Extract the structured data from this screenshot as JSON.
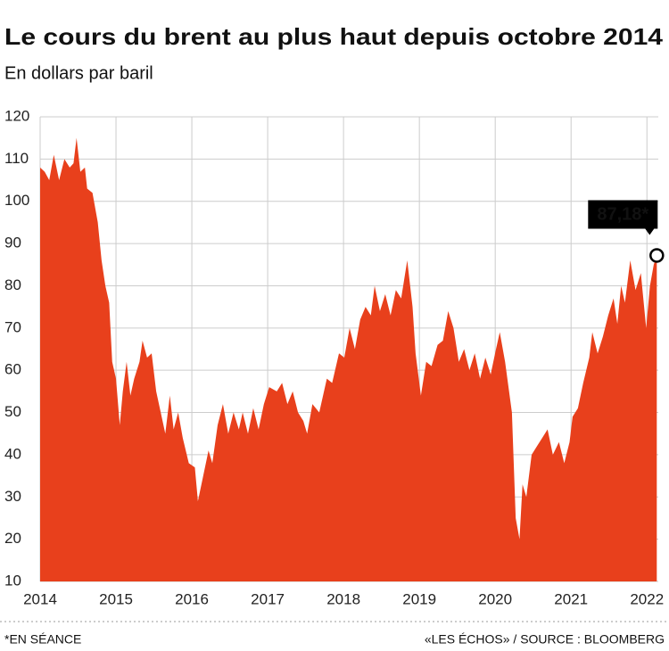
{
  "chart_data": {
    "type": "area",
    "title": "Le cours du brent au plus haut depuis octobre 2014",
    "subtitle": "En dollars par baril",
    "x": [
      2014.0,
      2014.06,
      2014.12,
      2014.18,
      2014.25,
      2014.32,
      2014.39,
      2014.44,
      2014.48,
      2014.53,
      2014.59,
      2014.62,
      2014.69,
      2014.76,
      2014.81,
      2014.86,
      2014.91,
      2014.95,
      2015.0,
      2015.05,
      2015.09,
      2015.14,
      2015.19,
      2015.24,
      2015.31,
      2015.35,
      2015.41,
      2015.47,
      2015.53,
      2015.59,
      2015.65,
      2015.71,
      2015.76,
      2015.82,
      2015.88,
      2015.96,
      2016.04,
      2016.08,
      2016.15,
      2016.22,
      2016.27,
      2016.34,
      2016.41,
      2016.48,
      2016.55,
      2016.62,
      2016.67,
      2016.74,
      2016.81,
      2016.88,
      2016.95,
      2017.02,
      2017.12,
      2017.19,
      2017.26,
      2017.33,
      2017.4,
      2017.47,
      2017.52,
      2017.59,
      2017.68,
      2017.78,
      2017.85,
      2017.94,
      2018.01,
      2018.08,
      2018.15,
      2018.22,
      2018.29,
      2018.36,
      2018.41,
      2018.48,
      2018.55,
      2018.62,
      2018.69,
      2018.76,
      2018.84,
      2018.91,
      2018.95,
      2019.02,
      2019.09,
      2019.16,
      2019.24,
      2019.31,
      2019.38,
      2019.45,
      2019.52,
      2019.59,
      2019.66,
      2019.73,
      2019.8,
      2019.87,
      2019.94,
      2020.01,
      2020.06,
      2020.13,
      2020.22,
      2020.27,
      2020.32,
      2020.36,
      2020.41,
      2020.48,
      2020.55,
      2020.62,
      2020.69,
      2020.76,
      2020.84,
      2020.91,
      2020.98,
      2021.02,
      2021.09,
      2021.16,
      2021.24,
      2021.28,
      2021.35,
      2021.42,
      2021.49,
      2021.56,
      2021.61,
      2021.66,
      2021.71,
      2021.78,
      2021.85,
      2021.92,
      2021.99,
      2022.04,
      2022.09,
      2022.13
    ],
    "values": [
      108,
      107,
      105,
      111,
      105,
      110,
      108,
      109,
      115,
      107,
      108,
      103,
      102,
      95,
      86,
      80,
      76,
      62,
      58,
      47,
      55,
      62,
      54,
      58,
      62,
      67,
      63,
      64,
      55,
      50,
      45,
      54,
      46,
      50,
      44,
      38,
      37,
      29,
      35,
      41,
      38,
      47,
      52,
      45,
      50,
      46,
      50,
      45,
      51,
      46,
      52,
      56,
      55,
      57,
      52,
      55,
      50,
      48,
      45,
      52,
      50,
      58,
      57,
      64,
      63,
      70,
      65,
      72,
      75,
      73,
      80,
      74,
      78,
      73,
      79,
      77,
      86,
      75,
      64,
      54,
      62,
      61,
      66,
      67,
      74,
      70,
      62,
      65,
      60,
      64,
      58,
      63,
      59,
      65,
      69,
      62,
      50,
      25,
      20,
      33,
      30,
      40,
      42,
      44,
      46,
      40,
      43,
      38,
      43,
      49,
      51,
      57,
      63,
      69,
      64,
      68,
      73,
      77,
      71,
      80,
      76,
      86,
      79,
      83,
      70,
      80,
      85,
      87.18
    ],
    "color": "#e8401c",
    "xlim": [
      2014,
      2022.15
    ],
    "xticks": [
      2014,
      2015,
      2016,
      2017,
      2018,
      2019,
      2020,
      2021,
      2022
    ],
    "ylim": [
      10,
      120
    ],
    "yticks": [
      10,
      20,
      30,
      40,
      50,
      60,
      70,
      80,
      90,
      100,
      110,
      120
    ],
    "grid": true,
    "annotation": {
      "label": "87,18*"
    },
    "footnote": "*EN SÉANCE",
    "source": "«LES ÉCHOS» / SOURCE : BLOOMBERG"
  }
}
